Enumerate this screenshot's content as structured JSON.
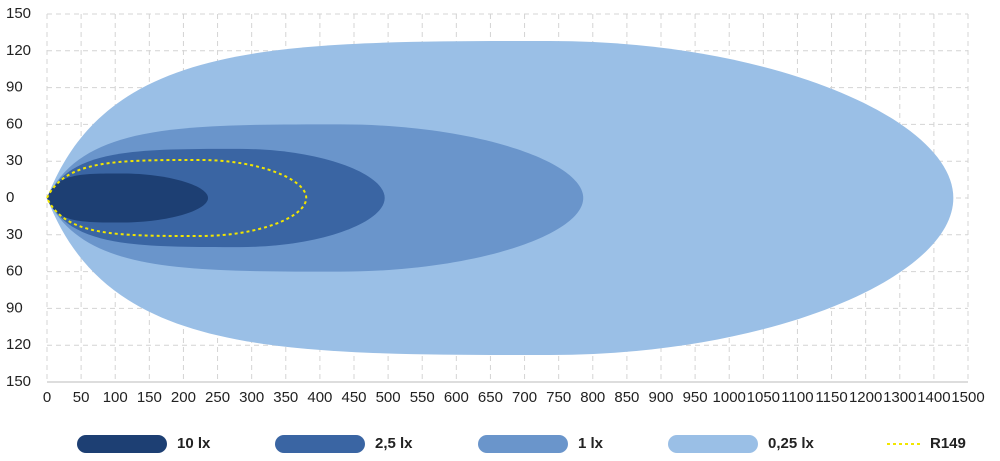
{
  "chart_data": {
    "type": "isolux",
    "xticks": [
      0,
      50,
      100,
      150,
      200,
      250,
      300,
      350,
      400,
      450,
      500,
      550,
      600,
      650,
      700,
      750,
      800,
      850,
      900,
      950,
      1000,
      1050,
      1100,
      1150,
      1200,
      1300,
      1400,
      1500
    ],
    "xlim": [
      0,
      1500
    ],
    "ylim": [
      -150,
      150
    ],
    "yticks": [
      {
        "value": -150,
        "label": "150"
      },
      {
        "value": -120,
        "label": "120"
      },
      {
        "value": -90,
        "label": "90"
      },
      {
        "value": -60,
        "label": "60"
      },
      {
        "value": -30,
        "label": "30"
      },
      0,
      30,
      60,
      90,
      120,
      150
    ],
    "grid": true,
    "series": [
      {
        "name": "0,25 lx",
        "color": "#9abfe6",
        "length": 1457,
        "width": 128,
        "peak": 737
      },
      {
        "name": "1 lx",
        "color": "#6a95cb",
        "length": 786,
        "width": 60,
        "peak": 430
      },
      {
        "name": "2,5 lx",
        "color": "#3a65a3",
        "length": 495,
        "width": 40,
        "peak": 283
      },
      {
        "name": "10 lx",
        "color": "#1d3f73",
        "length": 236,
        "width": 20,
        "peak": 108
      },
      {
        "name": "R149",
        "color": "#f2e600",
        "length": 380,
        "width": 31,
        "peak": 224,
        "dashed": true
      }
    ]
  }
}
